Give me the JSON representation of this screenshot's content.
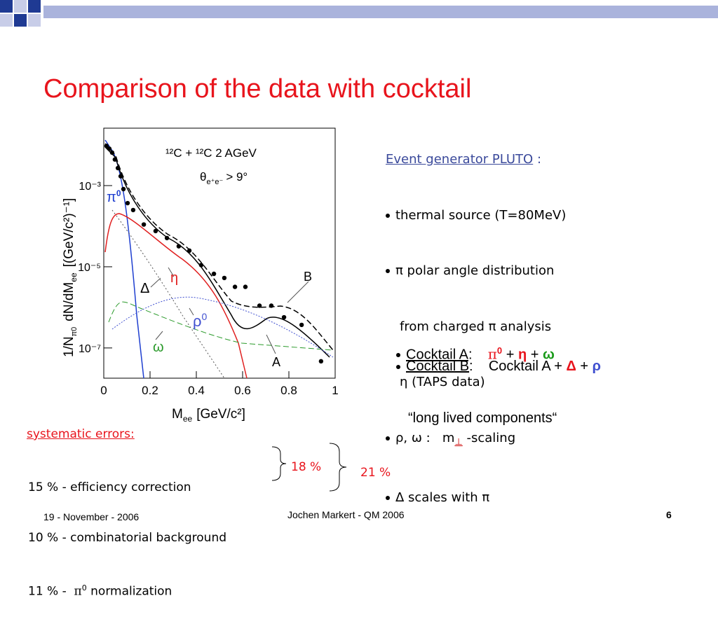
{
  "title": "Comparison of the data with cocktail",
  "pluto": {
    "heading": "Event generator PLUTO",
    "colon": ":",
    "items": [
      "thermal source (T=80MeV)",
      "π polar angle distribution",
      "from charged π analysis",
      "η (TAPS data)",
      "ρ, ω :   m",
      "⊥",
      "-scaling",
      "Δ scales with π"
    ]
  },
  "cocktail_a": {
    "name": "Cocktail A",
    "colon": ":",
    "pi": "π",
    "pi_sup": "0",
    "plus1": "+",
    "eta": "η",
    "plus2": "+",
    "omega": "ω",
    "note": "“long lived components“"
  },
  "cocktail_b": {
    "name": "Cocktail B",
    "colon": ":",
    "base": "Cocktail A",
    "plus1": "+",
    "delta": "Δ",
    "plus2": "+",
    "rho": "ρ"
  },
  "systematic": {
    "heading": "systematic errors:",
    "lines": [
      "15 % - efficiency correction",
      "10 % - combinatorial background",
      "11 % -",
      "π",
      "0",
      "normalization"
    ],
    "sum1": "18 %",
    "sum2": "21 %"
  },
  "footer": {
    "date": "19 - November - 2006",
    "author": "Jochen Markert - QM 2006",
    "page": "6"
  },
  "chart_data": {
    "type": "scatter",
    "log_y": true,
    "color": "#000000",
    "x": [
      0.012,
      0.024,
      0.036,
      0.048,
      0.061,
      0.073,
      0.085,
      0.103,
      0.127,
      0.173,
      0.224,
      0.273,
      0.324,
      0.37,
      0.421,
      0.476,
      0.521,
      0.567,
      0.612,
      0.673,
      0.724,
      0.779,
      0.855,
      0.939
    ],
    "values": [
      0.0095,
      0.0081,
      0.0065,
      0.0044,
      0.0027,
      0.0017,
      0.00082,
      0.00037,
      0.00025,
      0.00011,
      7.6e-05,
      5.1e-05,
      3.2e-05,
      2.5e-05,
      1.1e-05,
      6.7e-06,
      5.3e-06,
      3.2e-06,
      3.2e-06,
      1.1e-06,
      1.1e-06,
      5.7e-07,
      3.7e-07,
      4.7e-08
    ],
    "xlim": [
      0,
      1
    ],
    "xticks": [
      0,
      0.2,
      0.4,
      0.6,
      0.8,
      1
    ],
    "ylim": [
      1.8e-08,
      0.026
    ],
    "yticks": [
      {
        "value": 0.001,
        "label": "10⁻³"
      },
      {
        "value": 1e-05,
        "label": "10⁻⁵"
      },
      {
        "value": 1e-07,
        "label": "10⁻⁷"
      }
    ],
    "xlabel": [
      "M",
      "ee",
      "[GeV/c²]"
    ],
    "ylabel": [
      "1/N",
      "π0",
      "dN/dM",
      "ee",
      "[(GeV/c²)⁻¹]"
    ],
    "annotations": [
      "¹²C + ¹²C  2 AGeV",
      "θ",
      "e⁺e⁻",
      "> 9°",
      "π",
      "0",
      "η",
      "Δ",
      "ρ",
      "0",
      "ω",
      "B",
      "A"
    ]
  }
}
